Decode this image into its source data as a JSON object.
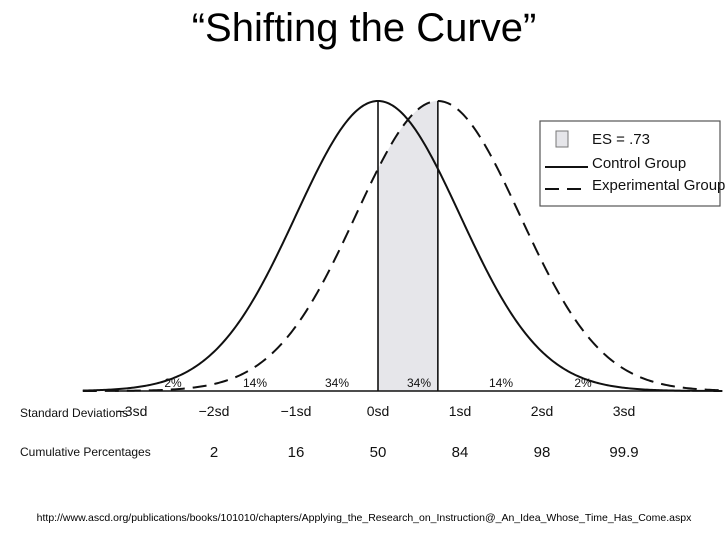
{
  "slide": {
    "title": "“Shifting the Curve”",
    "source_url": "http://www.ascd.org/publications/books/101010/chapters/Applying_the_Research_on_Instruction@_An_Idea_Whose_Time_Has_Come.aspx"
  },
  "chart_data": {
    "type": "line",
    "title": "",
    "xlim": [
      -3.6,
      4.2
    ],
    "ylim": [
      0,
      1
    ],
    "effect_size": 0.73,
    "legend_position": "top-right",
    "legend": [
      {
        "key": "es",
        "label": "ES = .73",
        "style": "shaded box"
      },
      {
        "key": "control",
        "label": "Control Group",
        "style": "solid"
      },
      {
        "key": "experimental",
        "label": "Experimental Group",
        "style": "dashed"
      }
    ],
    "series": [
      {
        "name": "Control Group",
        "mean": 0,
        "sd": 1,
        "style": "solid"
      },
      {
        "name": "Experimental Group",
        "mean": 0.73,
        "sd": 1,
        "style": "dashed"
      }
    ],
    "shaded_region": {
      "from": 0,
      "to": 0.73,
      "color": "#e6e6ea"
    },
    "band_percentages": [
      {
        "x": -2.5,
        "label": "2%"
      },
      {
        "x": -1.5,
        "label": "14%"
      },
      {
        "x": -0.5,
        "label": "34%"
      },
      {
        "x": 0.5,
        "label": "34%"
      },
      {
        "x": 1.5,
        "label": "14%"
      },
      {
        "x": 2.5,
        "label": "2%"
      }
    ],
    "sd_row_label": "Standard Deviations",
    "cum_row_label": "Cumulative Percentages",
    "ticks": [
      {
        "x": -3,
        "sd_label": "−3sd",
        "cumulative": ""
      },
      {
        "x": -2,
        "sd_label": "−2sd",
        "cumulative": "2"
      },
      {
        "x": -1,
        "sd_label": "−1sd",
        "cumulative": "16"
      },
      {
        "x": 0,
        "sd_label": "0sd",
        "cumulative": "50"
      },
      {
        "x": 1,
        "sd_label": "1sd",
        "cumulative": "84"
      },
      {
        "x": 2,
        "sd_label": "2sd",
        "cumulative": "98"
      },
      {
        "x": 3,
        "sd_label": "3sd",
        "cumulative": "99.9"
      }
    ],
    "colors": {
      "line": "#111111",
      "shade": "#e6e6ea",
      "legend_box": "#e6e6ea"
    }
  }
}
